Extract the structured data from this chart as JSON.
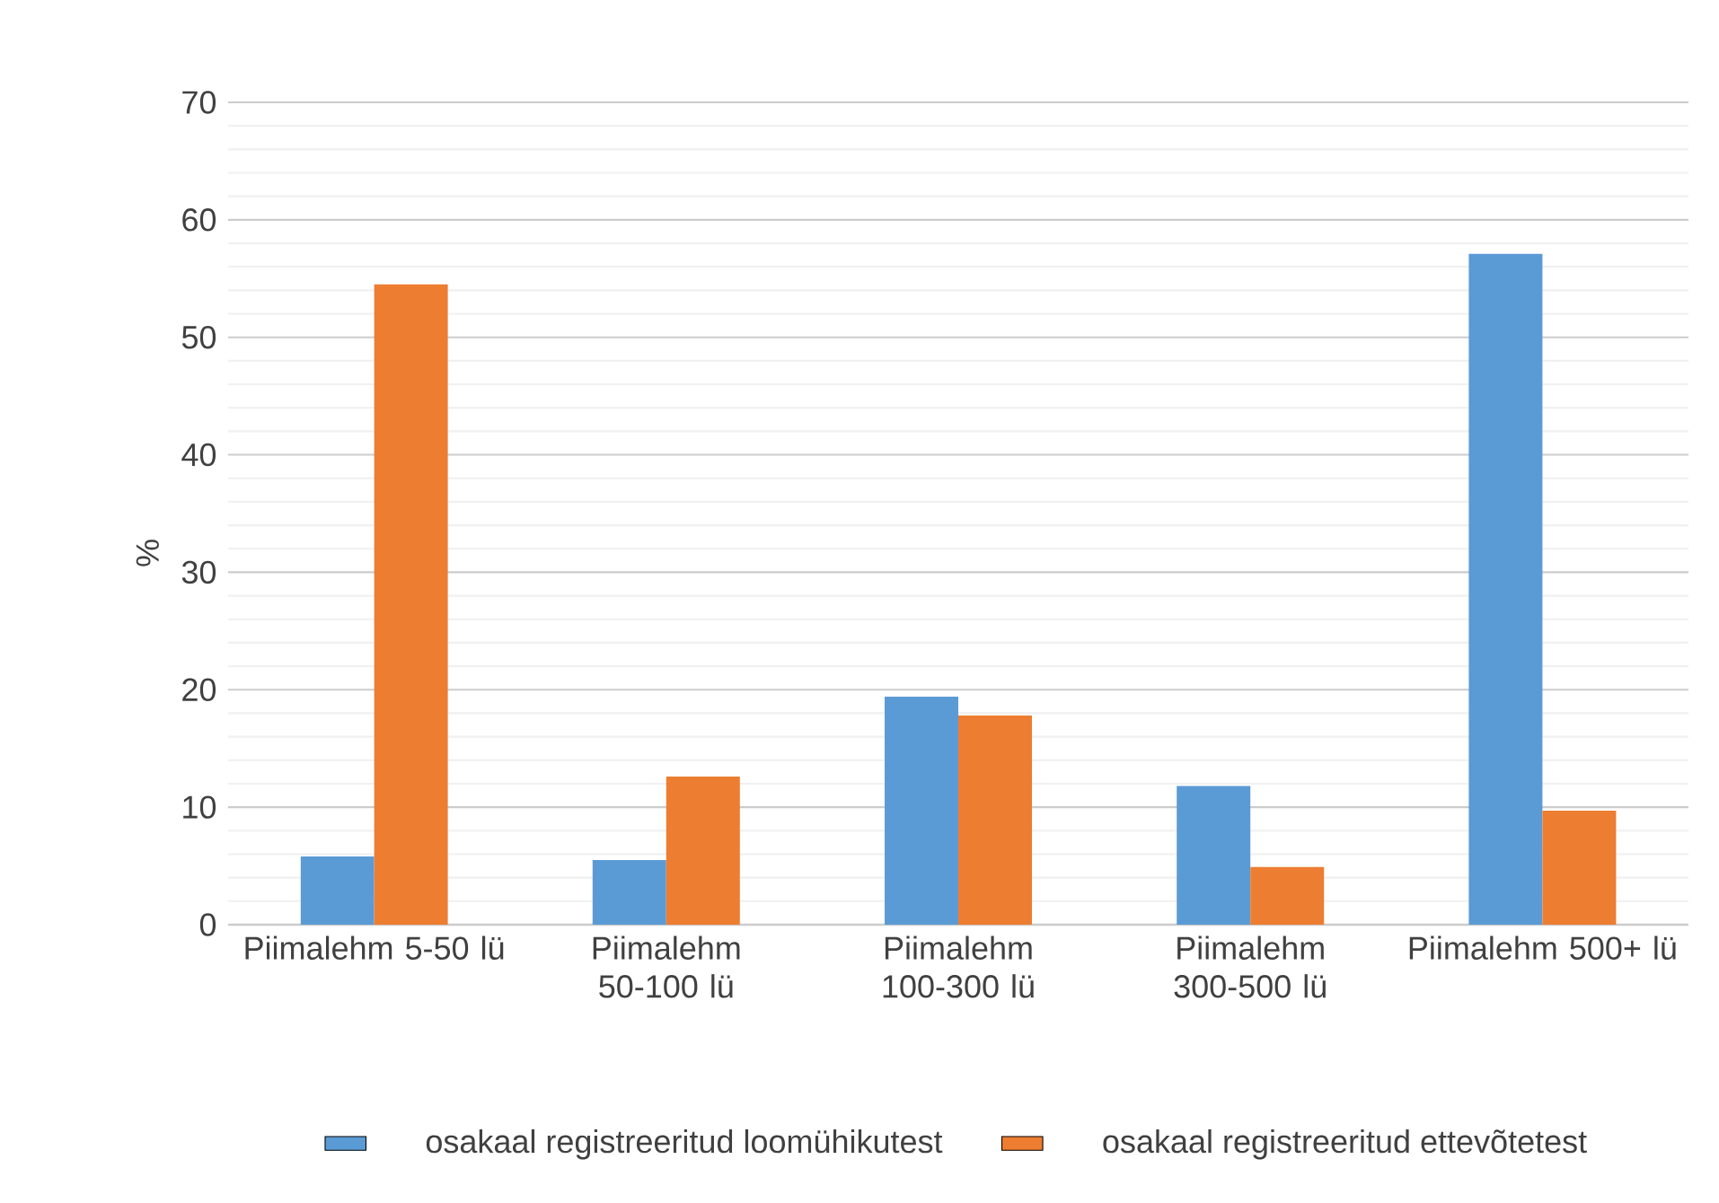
{
  "chart_data": {
    "type": "bar",
    "ylabel": "%",
    "categories": [
      "Piimalehm 5-50 lü",
      "Piimalehm 50-100 lü",
      "Piimalehm 100-300 lü",
      "Piimalehm 300-500 lü",
      "Piimalehm 500+ lü"
    ],
    "series": [
      {
        "name": "osakaal registreeritud loomühikutest",
        "color": "#5b9bd5",
        "values": [
          5.8,
          5.5,
          19.4,
          11.8,
          57.1
        ]
      },
      {
        "name": "osakaal registreeritud ettevõtetest",
        "color": "#ed7d31",
        "values": [
          54.5,
          12.6,
          17.8,
          4.9,
          9.7
        ]
      }
    ],
    "ylim": [
      0,
      70
    ],
    "yticks": [
      0,
      10,
      20,
      30,
      40,
      50,
      60,
      70
    ],
    "grid": "y",
    "legend": "bottom"
  }
}
